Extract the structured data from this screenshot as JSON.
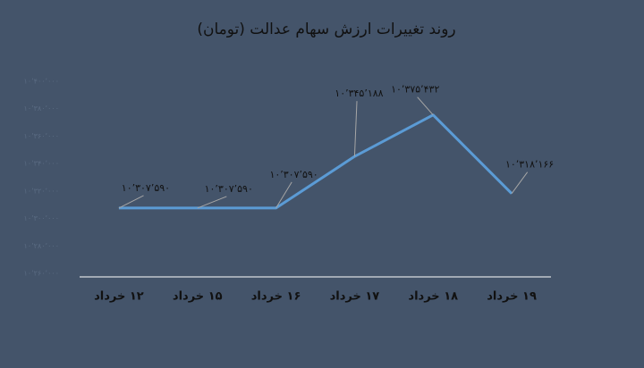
{
  "chart_data": {
    "type": "line",
    "title": "روند تغییرات ارزش سهام عدالت (تومان)",
    "categories": [
      "۱۲ خرداد",
      "۱۵ خرداد",
      "۱۶ خرداد",
      "۱۷ خرداد",
      "۱۸ خرداد",
      "۱۹ خرداد"
    ],
    "series": [
      {
        "name": "ارزش سهام عدالت",
        "color": "#5b9bd5",
        "values": [
          10307590,
          10307590,
          10307590,
          10345188,
          10375432,
          10318166
        ],
        "value_labels": [
          "۱۰٬۳۰۷٬۵۹۰",
          "۱۰٬۳۰۷٬۵۹۰",
          "۱۰٬۳۰۷٬۵۹۰",
          "۱۰٬۳۴۵٬۱۸۸",
          "۱۰٬۳۷۵٬۴۳۲",
          "۱۰٬۳۱۸٬۱۶۶"
        ]
      }
    ],
    "ylim": [
      10260000,
      10400000
    ],
    "yticks": [
      {
        "value": 10260000,
        "label": "۱۰٬۲۶۰٬۰۰۰"
      },
      {
        "value": 10280000,
        "label": "۱۰٬۲۸۰٬۰۰۰"
      },
      {
        "value": 10300000,
        "label": "۱۰٬۳۰۰٬۰۰۰"
      },
      {
        "value": 10320000,
        "label": "۱۰٬۳۲۰٬۰۰۰"
      },
      {
        "value": 10340000,
        "label": "۱۰٬۳۴۰٬۰۰۰"
      },
      {
        "value": 10360000,
        "label": "۱۰٬۳۶۰٬۰۰۰"
      },
      {
        "value": 10380000,
        "label": "۱۰٬۳۸۰٬۰۰۰"
      },
      {
        "value": 10400000,
        "label": "۱۰٬۴۰۰٬۰۰۰"
      }
    ],
    "grid": false
  }
}
